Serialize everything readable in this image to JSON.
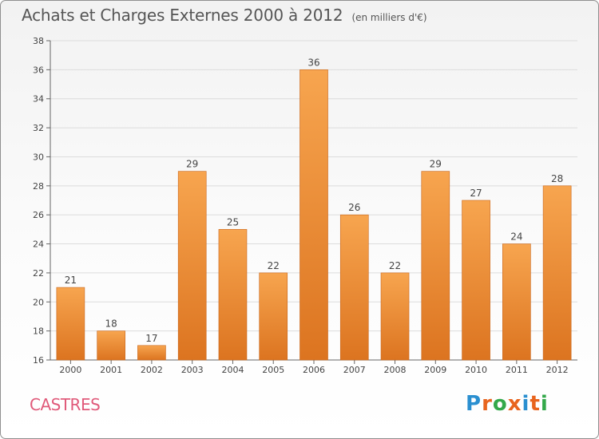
{
  "header": {
    "title": "Achats et Charges Externes 2000 à 2012",
    "subtitle": "(en milliers d'€)"
  },
  "location": "CASTRES",
  "brand": {
    "text": "Proxiti",
    "letter_colors": [
      "#2a8fd0",
      "#e8641e",
      "#33a84a",
      "#e8641e",
      "#2a8fd0",
      "#e8641e",
      "#33a84a"
    ]
  },
  "chart_data": {
    "type": "bar",
    "categories": [
      "2000",
      "2001",
      "2002",
      "2003",
      "2004",
      "2005",
      "2006",
      "2007",
      "2008",
      "2009",
      "2010",
      "2011",
      "2012"
    ],
    "values": [
      21,
      18,
      17,
      29,
      25,
      22,
      36,
      26,
      22,
      29,
      27,
      24,
      28
    ],
    "ylim": [
      16,
      38
    ],
    "yticks": [
      16,
      18,
      20,
      22,
      24,
      26,
      28,
      30,
      32,
      34,
      36,
      38
    ],
    "grid": true,
    "bar_color_top": "#f7a54f",
    "bar_color_bottom": "#dc7420",
    "bar_edge": "#c9661c"
  }
}
